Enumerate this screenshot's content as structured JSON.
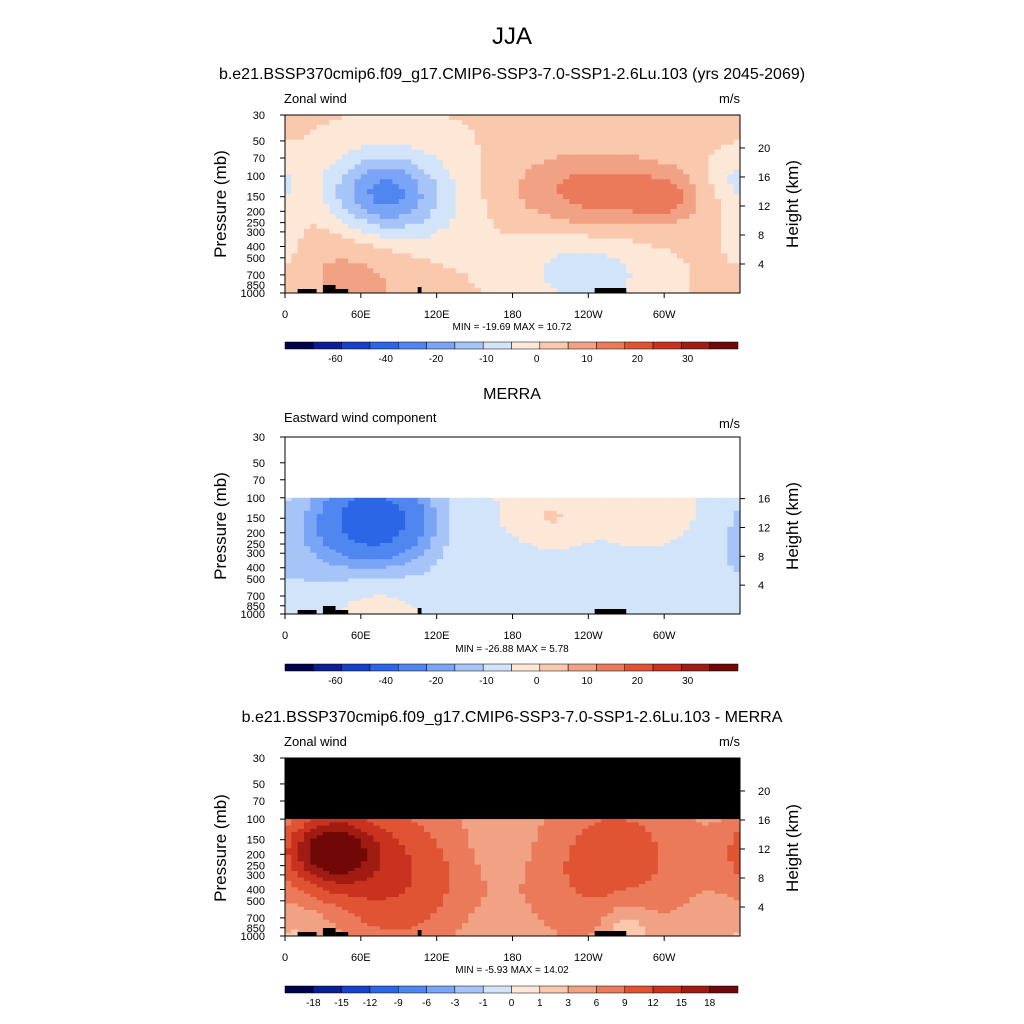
{
  "page": {
    "title": "JJA"
  },
  "colors": {
    "main": [
      "#00004d",
      "#0a1e96",
      "#1542c8",
      "#2a66e6",
      "#4f86f0",
      "#7aa4f5",
      "#a6c4f7",
      "#d2e4fa",
      "#fde8d8",
      "#f9c8ad",
      "#f2a284",
      "#ea7a5a",
      "#e05433",
      "#c8321e",
      "#a01c12",
      "#700808"
    ],
    "diff": [
      "#00004d",
      "#0a1e96",
      "#1542c8",
      "#2a66e6",
      "#4f86f0",
      "#7aa4f5",
      "#a6c4f7",
      "#d2e4fa",
      "#fde8d8",
      "#f9c8ad",
      "#f2a284",
      "#ea7a5a",
      "#e05433",
      "#c8321e",
      "#a01c12",
      "#700808"
    ],
    "missing": "#000000",
    "topo": "#000000"
  },
  "chart_data": [
    {
      "type": "heatmap",
      "title": "b.e21.BSSP370cmip6.f09_g17.CMIP6-SSP3-7.0-SSP1-2.6Lu.103 (yrs 2045-2069)",
      "var_label": "Zonal wind",
      "units": "m/s",
      "ylabel": "Pressure (mb)",
      "ylabel_right": "Height (km)",
      "x_ticks": [
        "0",
        "60E",
        "120E",
        "180",
        "120W",
        "60W"
      ],
      "x_tick_lon": [
        0,
        60,
        120,
        180,
        240,
        300
      ],
      "xlim": [
        0,
        360
      ],
      "y_ticks": [
        "30",
        "50",
        "70",
        "100",
        "150",
        "200",
        "250",
        "300",
        "400",
        "500",
        "700",
        "850",
        "1000"
      ],
      "y_tick_p": [
        30,
        50,
        70,
        100,
        150,
        200,
        250,
        300,
        400,
        500,
        700,
        850,
        1000
      ],
      "ylim_mb": [
        1000,
        30
      ],
      "height_ticks": [
        "20",
        "16",
        "12",
        "8",
        "4"
      ],
      "height_km": [
        20,
        16,
        12,
        8,
        4
      ],
      "minmax_text": "MIN = -19.69  MAX =  10.72",
      "data_top_mb": 30,
      "colorbar_labels": [
        "-60",
        "-40",
        "-20",
        "-10",
        "0",
        "10",
        "20",
        "30"
      ],
      "contour_levels": [
        -70,
        -60,
        -50,
        -40,
        -30,
        -20,
        -15,
        -10,
        -5,
        0,
        5,
        10,
        15,
        20,
        25,
        30
      ],
      "blobs": [
        {
          "lon": 75,
          "p": 140,
          "wlon": 42,
          "wlev": 0.22,
          "val": -17
        },
        {
          "lon": 95,
          "p": 180,
          "wlon": 55,
          "wlev": 0.32,
          "val": -8
        },
        {
          "lon": 0,
          "p": 250,
          "wlon": 14,
          "wlev": 0.25,
          "val": -6
        },
        {
          "lon": 245,
          "p": 130,
          "wlon": 70,
          "wlev": 0.22,
          "val": 9
        },
        {
          "lon": 300,
          "p": 150,
          "wlon": 22,
          "wlev": 0.12,
          "val": 7
        },
        {
          "lon": 255,
          "p": 200,
          "wlon": 60,
          "wlev": 0.25,
          "val": 5
        },
        {
          "lon": 60,
          "p": 600,
          "wlon": 55,
          "wlev": 0.35,
          "val": 7
        },
        {
          "lon": 240,
          "p": 600,
          "wlon": 55,
          "wlev": 0.28,
          "val": -9
        },
        {
          "lon": 350,
          "p": 100,
          "wlon": 20,
          "wlev": 0.12,
          "val": -5
        }
      ]
    },
    {
      "type": "heatmap",
      "title": "MERRA",
      "var_label": "Eastward wind component",
      "units": "m/s",
      "ylabel": "Pressure (mb)",
      "ylabel_right": "Height (km)",
      "x_ticks": [
        "0",
        "60E",
        "120E",
        "180",
        "120W",
        "60W"
      ],
      "x_tick_lon": [
        0,
        60,
        120,
        180,
        240,
        300
      ],
      "xlim": [
        0,
        360
      ],
      "y_ticks": [
        "30",
        "50",
        "70",
        "100",
        "150",
        "200",
        "250",
        "300",
        "400",
        "500",
        "700",
        "850",
        "1000"
      ],
      "y_tick_p": [
        30,
        50,
        70,
        100,
        150,
        200,
        250,
        300,
        400,
        500,
        700,
        850,
        1000
      ],
      "ylim_mb": [
        1000,
        30
      ],
      "height_ticks": [
        "16",
        "12",
        "8",
        "4"
      ],
      "height_km": [
        16,
        12,
        8,
        4
      ],
      "minmax_text": "MIN = -26.88  MAX =   5.78",
      "data_top_mb": 100,
      "colorbar_labels": [
        "-60",
        "-40",
        "-20",
        "-10",
        "0",
        "10",
        "20",
        "30"
      ],
      "contour_levels": [
        -70,
        -60,
        -50,
        -40,
        -30,
        -20,
        -15,
        -10,
        -5,
        0,
        5,
        10,
        15,
        20,
        25,
        30
      ],
      "blobs": [
        {
          "lon": 70,
          "p": 150,
          "wlon": 40,
          "wlev": 0.22,
          "val": -24
        },
        {
          "lon": 70,
          "p": 200,
          "wlon": 70,
          "wlev": 0.4,
          "val": -10
        },
        {
          "lon": 20,
          "p": 400,
          "wlon": 90,
          "wlev": 0.6,
          "val": -6
        },
        {
          "lon": 200,
          "p": 500,
          "wlon": 140,
          "wlev": 0.8,
          "val": -6
        },
        {
          "lon": 210,
          "p": 150,
          "wlon": 30,
          "wlev": 0.15,
          "val": 6
        },
        {
          "lon": 290,
          "p": 150,
          "wlon": 35,
          "wlev": 0.15,
          "val": 5
        },
        {
          "lon": 70,
          "p": 700,
          "wlon": 45,
          "wlev": 0.25,
          "val": 7
        },
        {
          "lon": 140,
          "p": 250,
          "wlon": 30,
          "wlev": 0.3,
          "val": 3
        }
      ]
    },
    {
      "type": "heatmap",
      "title": "b.e21.BSSP370cmip6.f09_g17.CMIP6-SSP3-7.0-SSP1-2.6Lu.103 - MERRA",
      "var_label": "Zonal wind",
      "units": "m/s",
      "ylabel": "Pressure (mb)",
      "ylabel_right": "Height (km)",
      "x_ticks": [
        "0",
        "60E",
        "120E",
        "180",
        "120W",
        "60W"
      ],
      "x_tick_lon": [
        0,
        60,
        120,
        180,
        240,
        300
      ],
      "xlim": [
        0,
        360
      ],
      "y_ticks": [
        "30",
        "50",
        "70",
        "100",
        "150",
        "200",
        "250",
        "300",
        "400",
        "500",
        "700",
        "850",
        "1000"
      ],
      "y_tick_p": [
        30,
        50,
        70,
        100,
        150,
        200,
        250,
        300,
        400,
        500,
        700,
        850,
        1000
      ],
      "ylim_mb": [
        1000,
        30
      ],
      "height_ticks": [
        "20",
        "16",
        "12",
        "8",
        "4"
      ],
      "height_km": [
        20,
        16,
        12,
        8,
        4
      ],
      "minmax_text": "MIN =  -5.93  MAX =  14.02",
      "data_top_mb": 100,
      "missing_top": true,
      "colorbar_labels": [
        "-18",
        "-15",
        "-12",
        "-9",
        "-6",
        "-3",
        "-1",
        "0",
        "1",
        "3",
        "6",
        "9",
        "12",
        "15",
        "18"
      ],
      "contour_levels": [
        -21,
        -18,
        -15,
        -12,
        -9,
        -6,
        -3,
        -1,
        0,
        1,
        3,
        6,
        9,
        12,
        15,
        18
      ],
      "blobs": [
        {
          "lon": 35,
          "p": 180,
          "wlon": 35,
          "wlev": 0.2,
          "val": 13
        },
        {
          "lon": 60,
          "p": 280,
          "wlon": 70,
          "wlev": 0.45,
          "val": 8
        },
        {
          "lon": 110,
          "p": 400,
          "wlon": 60,
          "wlev": 0.7,
          "val": 5
        },
        {
          "lon": 270,
          "p": 200,
          "wlon": 70,
          "wlev": 0.5,
          "val": 8
        },
        {
          "lon": 220,
          "p": 500,
          "wlon": 60,
          "wlev": 0.6,
          "val": 3
        },
        {
          "lon": 170,
          "p": 180,
          "wlon": 25,
          "wlev": 0.2,
          "val": -1.5
        },
        {
          "lon": 270,
          "p": 850,
          "wlon": 20,
          "wlev": 0.15,
          "val": -5
        },
        {
          "lon": 20,
          "p": 850,
          "wlon": 30,
          "wlev": 0.15,
          "val": -2
        },
        {
          "lon": 160,
          "p": 900,
          "wlon": 40,
          "wlev": 0.15,
          "val": -1
        }
      ]
    }
  ]
}
